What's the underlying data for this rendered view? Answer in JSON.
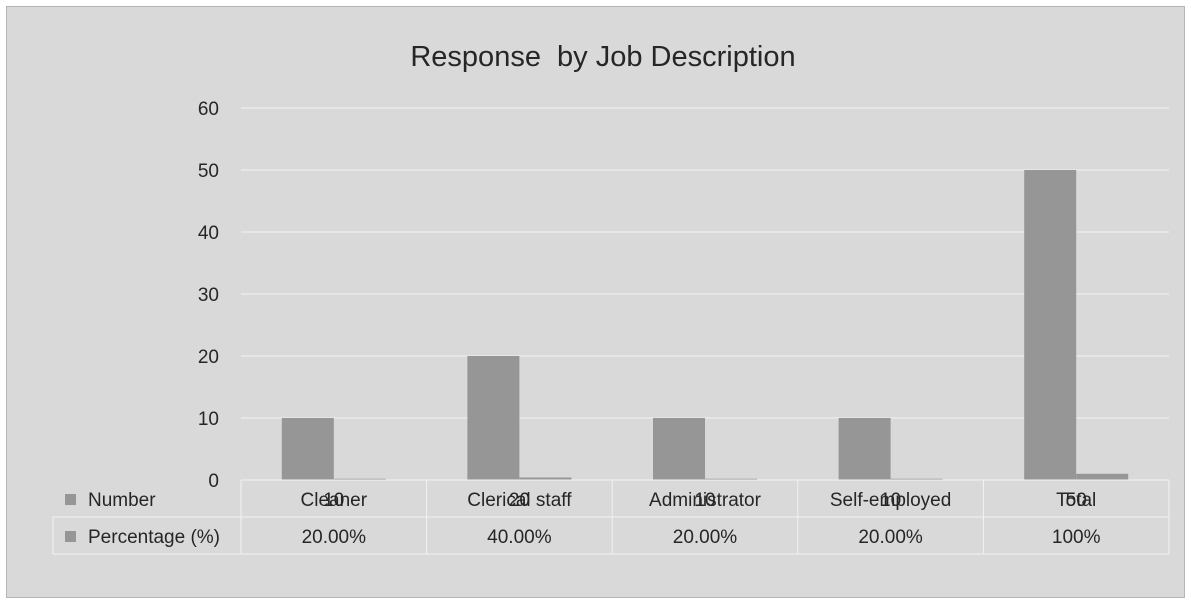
{
  "chart_data": {
    "type": "bar",
    "title": "Response  by Job Description",
    "categories": [
      "Cleaner",
      "Clerical staff",
      "Administrator",
      "Self-employed",
      "Total"
    ],
    "series": [
      {
        "name": "Number",
        "values": [
          10,
          20,
          10,
          10,
          50
        ],
        "labels": [
          "10",
          "20",
          "10",
          "10",
          "50"
        ],
        "color": "#969696"
      },
      {
        "name": "Percentage (%)",
        "values": [
          0.2,
          0.4,
          0.2,
          0.2,
          1
        ],
        "labels": [
          "20.00%",
          "40.00%",
          "20.00%",
          "20.00%",
          "100%"
        ],
        "color": "#969696"
      }
    ],
    "ylim": [
      0,
      60
    ],
    "yticks": [
      0,
      10,
      20,
      30,
      40,
      50,
      60
    ],
    "ytick_labels": [
      "0",
      "10",
      "20",
      "30",
      "40",
      "50",
      "60"
    ],
    "grid": true,
    "legend": "data-table",
    "background_color": "#d9d9d9",
    "gridline_color": "#f2f2f2",
    "table_border_color": "#f2f2f2"
  }
}
